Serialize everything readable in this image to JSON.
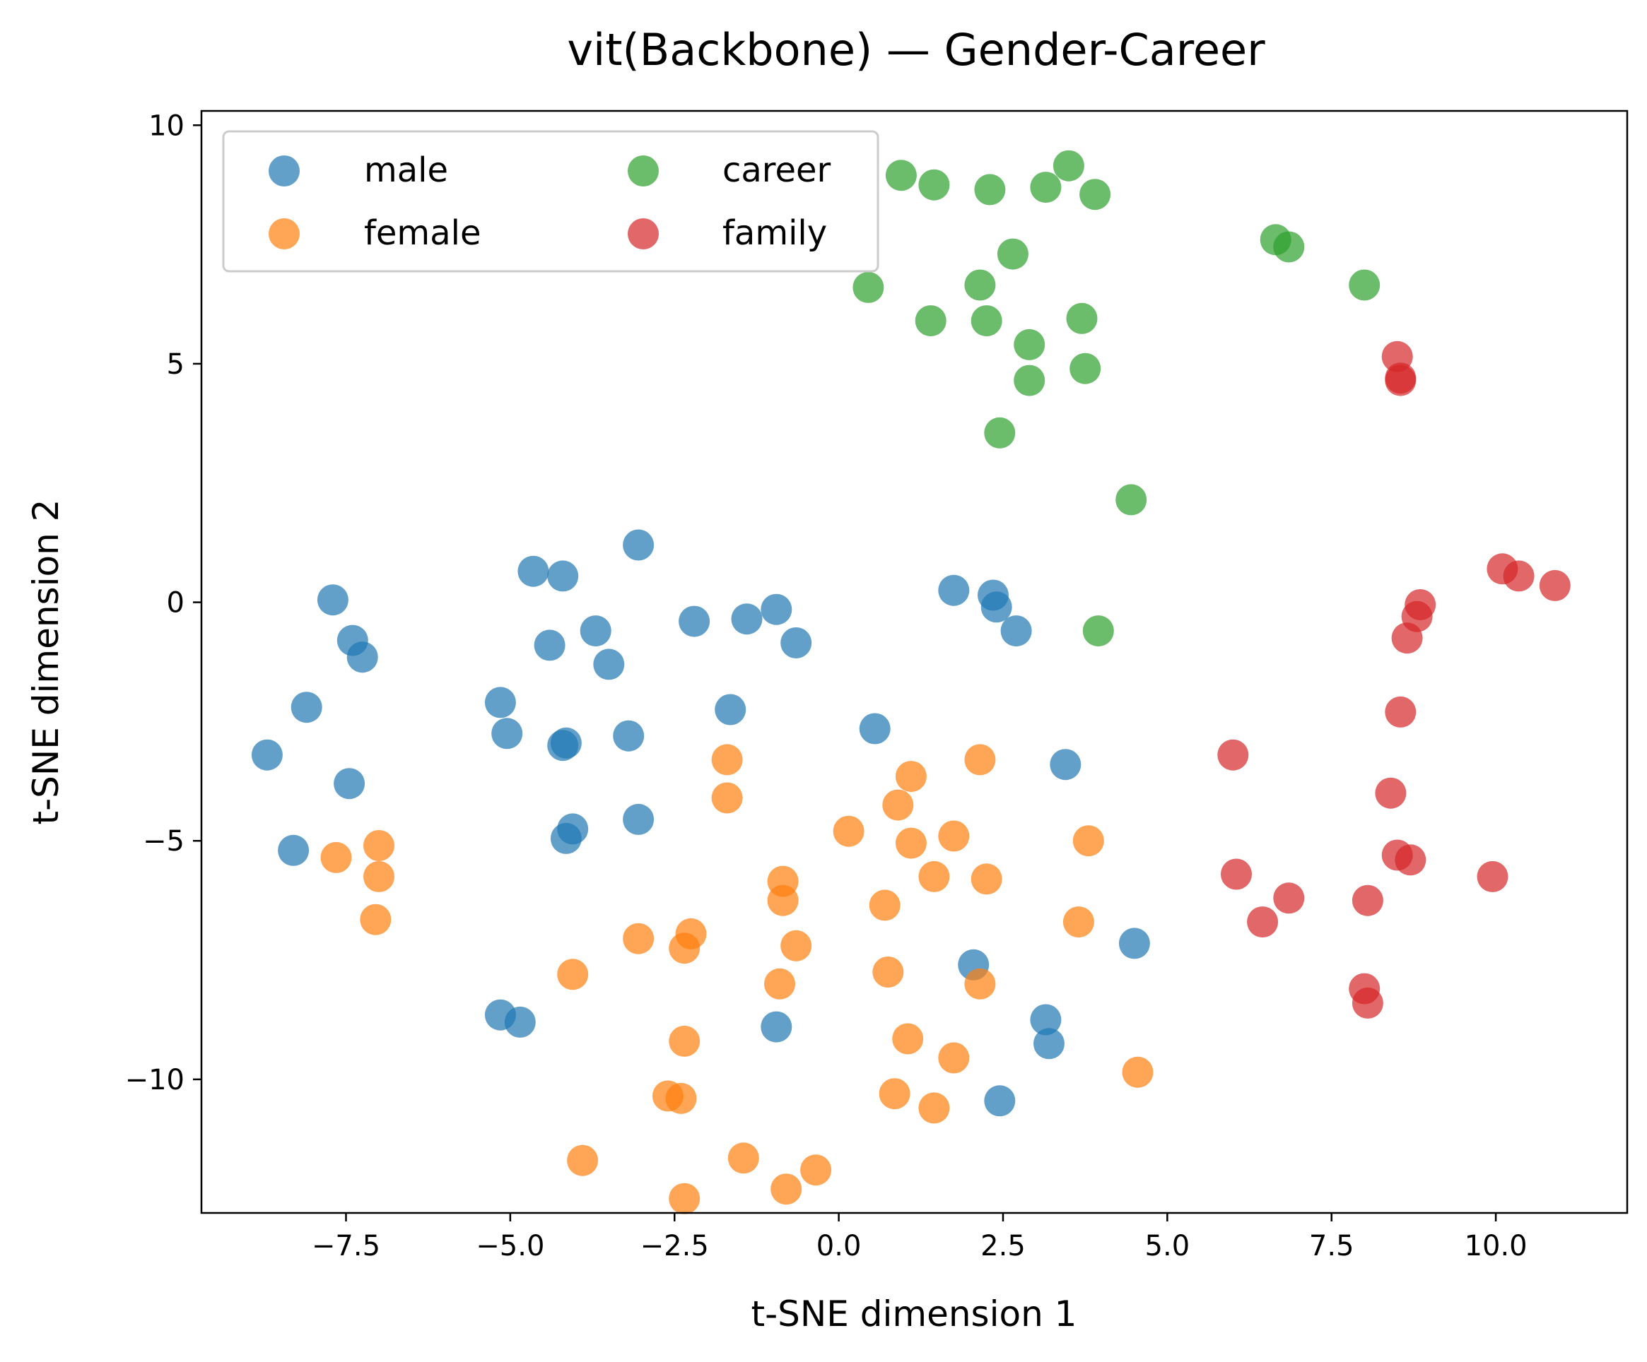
{
  "chart_data": {
    "type": "scatter",
    "title": "vit(Backbone) — Gender-Career",
    "xlabel": "t-SNE dimension 1",
    "ylabel": "t-SNE dimension 2",
    "xlim": [
      -9.7,
      12.0
    ],
    "ylim": [
      -12.8,
      10.3
    ],
    "xticks": [
      -7.5,
      -5.0,
      -2.5,
      0.0,
      2.5,
      5.0,
      7.5,
      10.0
    ],
    "xtick_labels": [
      "−7.5",
      "−5.0",
      "−2.5",
      "0.0",
      "2.5",
      "5.0",
      "7.5",
      "10.0"
    ],
    "yticks": [
      -10,
      -5,
      0,
      5,
      10
    ],
    "ytick_labels": [
      "−10",
      "−5",
      "0",
      "5",
      "10"
    ],
    "grid": false,
    "legend": {
      "placement": "upper-left",
      "columns": 2
    },
    "series": [
      {
        "name": "male",
        "color": "#1f77b4",
        "points": [
          [
            -7.7,
            0.05
          ],
          [
            -7.4,
            -0.8
          ],
          [
            -7.25,
            -1.15
          ],
          [
            -8.1,
            -2.2
          ],
          [
            -8.7,
            -3.2
          ],
          [
            -7.45,
            -3.8
          ],
          [
            -8.3,
            -5.2
          ],
          [
            -4.65,
            0.65
          ],
          [
            -4.2,
            0.55
          ],
          [
            -3.05,
            1.2
          ],
          [
            -4.4,
            -0.9
          ],
          [
            -3.7,
            -0.6
          ],
          [
            -3.5,
            -1.3
          ],
          [
            -2.2,
            -0.4
          ],
          [
            -1.4,
            -0.35
          ],
          [
            -0.95,
            -0.15
          ],
          [
            -0.65,
            -0.85
          ],
          [
            -1.65,
            -2.25
          ],
          [
            -5.15,
            -2.1
          ],
          [
            -5.05,
            -2.75
          ],
          [
            -4.15,
            -2.95
          ],
          [
            -4.2,
            -3.0
          ],
          [
            -3.2,
            -2.8
          ],
          [
            -3.05,
            -4.55
          ],
          [
            -4.05,
            -4.75
          ],
          [
            -4.15,
            -4.95
          ],
          [
            0.55,
            -2.65
          ],
          [
            1.75,
            0.25
          ],
          [
            2.35,
            0.15
          ],
          [
            2.4,
            -0.1
          ],
          [
            2.7,
            -0.6
          ],
          [
            3.45,
            -3.4
          ],
          [
            4.5,
            -7.15
          ],
          [
            2.05,
            -7.6
          ],
          [
            -5.15,
            -8.65
          ],
          [
            -4.85,
            -8.8
          ],
          [
            -0.95,
            -8.9
          ],
          [
            3.15,
            -8.75
          ],
          [
            3.2,
            -9.25
          ],
          [
            2.45,
            -10.45
          ]
        ]
      },
      {
        "name": "female",
        "color": "#ff7f0e",
        "points": [
          [
            -7.65,
            -5.35
          ],
          [
            -7.0,
            -5.1
          ],
          [
            -7.0,
            -5.75
          ],
          [
            -7.05,
            -6.65
          ],
          [
            -1.7,
            -3.3
          ],
          [
            -1.7,
            -4.1
          ],
          [
            1.1,
            -3.65
          ],
          [
            2.15,
            -3.3
          ],
          [
            0.9,
            -4.25
          ],
          [
            0.15,
            -4.8
          ],
          [
            1.1,
            -5.05
          ],
          [
            1.75,
            -4.9
          ],
          [
            3.8,
            -5.0
          ],
          [
            -0.85,
            -5.85
          ],
          [
            1.45,
            -5.75
          ],
          [
            2.25,
            -5.8
          ],
          [
            -0.85,
            -6.25
          ],
          [
            0.7,
            -6.35
          ],
          [
            3.65,
            -6.7
          ],
          [
            -3.05,
            -7.05
          ],
          [
            -2.25,
            -6.95
          ],
          [
            -2.35,
            -7.25
          ],
          [
            -0.65,
            -7.2
          ],
          [
            -4.05,
            -7.8
          ],
          [
            0.75,
            -7.75
          ],
          [
            -0.9,
            -8.0
          ],
          [
            2.15,
            -8.0
          ],
          [
            -2.35,
            -9.2
          ],
          [
            1.05,
            -9.15
          ],
          [
            1.75,
            -9.55
          ],
          [
            4.55,
            -9.85
          ],
          [
            -2.6,
            -10.35
          ],
          [
            -2.4,
            -10.4
          ],
          [
            0.85,
            -10.3
          ],
          [
            1.45,
            -10.6
          ],
          [
            -3.9,
            -11.7
          ],
          [
            -1.45,
            -11.65
          ],
          [
            -0.35,
            -11.9
          ],
          [
            -0.8,
            -12.3
          ],
          [
            -2.35,
            -12.5
          ]
        ]
      },
      {
        "name": "career",
        "color": "#2ca02c",
        "points": [
          [
            0.95,
            8.95
          ],
          [
            1.45,
            8.75
          ],
          [
            2.3,
            8.65
          ],
          [
            3.15,
            8.7
          ],
          [
            3.5,
            9.15
          ],
          [
            3.9,
            8.55
          ],
          [
            6.65,
            7.6
          ],
          [
            6.85,
            7.45
          ],
          [
            2.65,
            7.3
          ],
          [
            2.15,
            6.65
          ],
          [
            8.0,
            6.65
          ],
          [
            0.45,
            6.6
          ],
          [
            1.4,
            5.9
          ],
          [
            2.25,
            5.9
          ],
          [
            3.7,
            5.95
          ],
          [
            2.9,
            5.4
          ],
          [
            2.9,
            4.65
          ],
          [
            3.75,
            4.9
          ],
          [
            2.45,
            3.55
          ],
          [
            4.45,
            2.15
          ],
          [
            3.95,
            -0.6
          ]
        ]
      },
      {
        "name": "family",
        "color": "#d62728",
        "points": [
          [
            8.5,
            5.15
          ],
          [
            8.55,
            4.65
          ],
          [
            8.55,
            4.7
          ],
          [
            10.1,
            0.7
          ],
          [
            10.35,
            0.55
          ],
          [
            10.9,
            0.35
          ],
          [
            8.85,
            -0.05
          ],
          [
            8.8,
            -0.3
          ],
          [
            8.65,
            -0.75
          ],
          [
            8.55,
            -2.3
          ],
          [
            6.0,
            -3.2
          ],
          [
            8.4,
            -4.0
          ],
          [
            8.5,
            -5.3
          ],
          [
            8.7,
            -5.4
          ],
          [
            9.95,
            -5.75
          ],
          [
            6.05,
            -5.7
          ],
          [
            6.85,
            -6.2
          ],
          [
            8.05,
            -6.25
          ],
          [
            6.45,
            -6.7
          ],
          [
            8.0,
            -8.1
          ],
          [
            8.05,
            -8.4
          ]
        ]
      }
    ]
  }
}
